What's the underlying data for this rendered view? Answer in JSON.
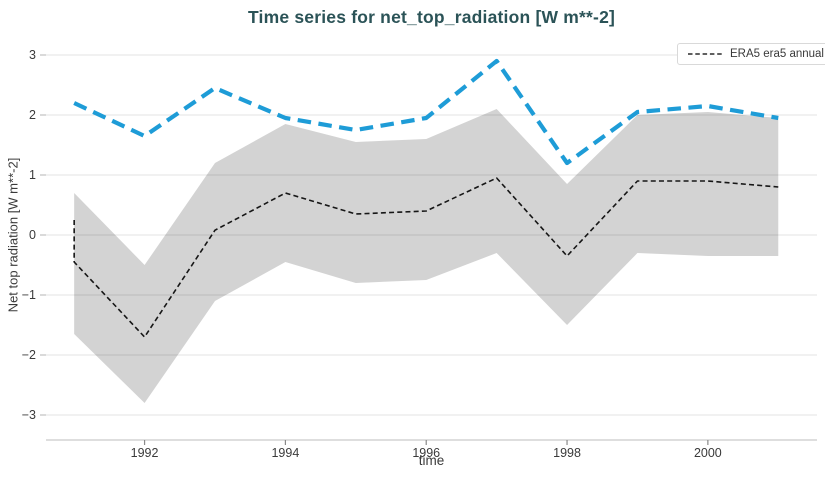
{
  "chart_data": {
    "type": "line",
    "title": "Time series for net_top_radiation [W m**-2]",
    "xlabel": "time",
    "ylabel": "Net top radiation [W m**-2]",
    "legend_entries": [
      "ERA5 era5 annual"
    ],
    "legend_position": "top-right",
    "grid": true,
    "xlim": [
      1990.6,
      2001.55
    ],
    "ylim": [
      -3,
      3
    ],
    "xticks": [
      1992,
      1994,
      1996,
      1998,
      2000
    ],
    "yticks": [
      3,
      2,
      1,
      0,
      -1,
      -2,
      -3
    ],
    "colors": {
      "blue_line": "#1e9cd7",
      "black_line": "#161616",
      "band_fill": "#d3d3d3",
      "title": "#2b5357",
      "tick_text": "#3a3a3a"
    },
    "band": {
      "name": "uncertainty band (grey)",
      "x": [
        1991,
        1992,
        1993,
        1994,
        1995,
        1996,
        1997,
        1998,
        1999,
        2000,
        2001
      ],
      "upper": [
        0.7,
        -0.5,
        1.2,
        1.85,
        1.55,
        1.6,
        2.1,
        0.85,
        2.0,
        2.05,
        1.95
      ],
      "lower": [
        -1.65,
        -2.8,
        -1.1,
        -0.45,
        -0.8,
        -0.75,
        -0.3,
        -1.5,
        -0.3,
        -0.35,
        -0.35
      ]
    },
    "series": [
      {
        "name": "unlabeled blue dashed series",
        "legend_label": "",
        "line_weight": "thick",
        "x": [
          1991,
          1992,
          1993,
          1994,
          1995,
          1996,
          1997,
          1998,
          1999,
          2000,
          2001
        ],
        "values": [
          2.2,
          1.65,
          2.45,
          1.95,
          1.75,
          1.95,
          2.9,
          1.2,
          2.05,
          2.15,
          1.95
        ]
      },
      {
        "name": "ERA5 era5 annual",
        "legend_label": "ERA5 era5 annual",
        "line_weight": "thin",
        "x": [
          1991,
          1991,
          1992,
          1993,
          1994,
          1995,
          1996,
          1997,
          1998,
          1999,
          2000,
          2001
        ],
        "values": [
          0.25,
          -0.45,
          -1.7,
          0.08,
          0.7,
          0.35,
          0.4,
          0.95,
          -0.35,
          0.9,
          0.9,
          0.8
        ]
      }
    ]
  }
}
